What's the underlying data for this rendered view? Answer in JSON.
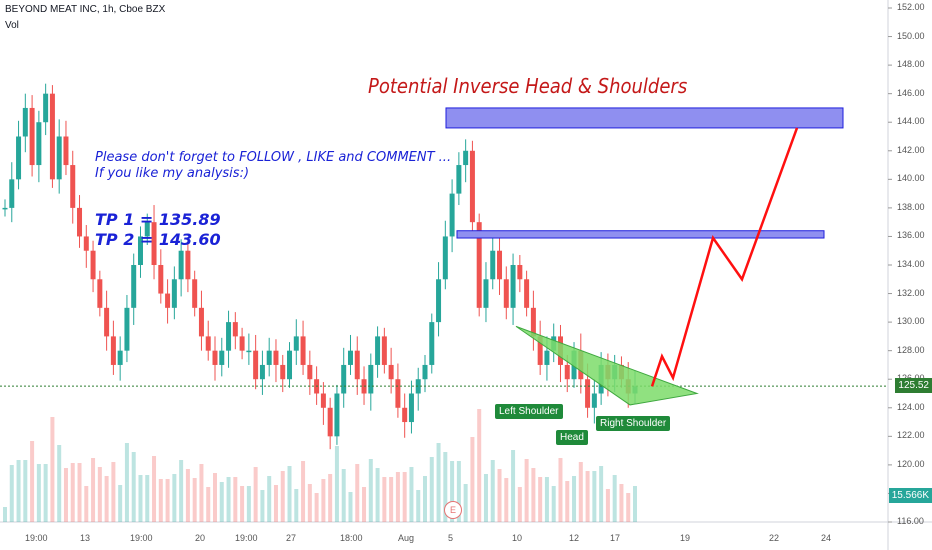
{
  "header": {
    "symbol_line": "BEYOND MEAT INC, 1h, Cboe BZX",
    "volume_label": "Vol"
  },
  "annotations": {
    "title": "Potential Inverse Head & Shoulders",
    "note_line1": "Please don't forget  to FOLLOW , LIKE and COMMENT ...",
    "note_line2": "If you like my analysis:)",
    "tp1": "TP 1 = 135.89",
    "tp2": "TP 2 = 143.60",
    "left_shoulder": "Left Shoulder",
    "head": "Head",
    "right_shoulder": "Right Shoulder",
    "earnings_marker": "E"
  },
  "price_axis": {
    "last_price": "125.52",
    "volume_value": "15.566K",
    "ticks": [
      "152.00",
      "150.00",
      "148.00",
      "146.00",
      "144.00",
      "142.00",
      "140.00",
      "138.00",
      "136.00",
      "134.00",
      "132.00",
      "130.00",
      "128.00",
      "126.00",
      "124.00",
      "122.00",
      "120.00",
      "118.00",
      "116.00"
    ]
  },
  "time_axis": {
    "ticks": [
      "19:00",
      "13",
      "19:00",
      "20",
      "19:00",
      "27",
      "18:00",
      "Aug",
      "5",
      "10",
      "12",
      "17",
      "19",
      "22",
      "24"
    ]
  },
  "colors": {
    "up": "#26a69a",
    "down": "#ef5350",
    "zone_fill": "#8f8ff0",
    "zone_border": "#1e1edc",
    "triangle": "#7ddc6a",
    "projection": "#ff1010",
    "last_price_line": "#2e7d32",
    "label_bg": "#1f8a3a"
  },
  "chart_data": {
    "type": "candlestick",
    "symbol": "BEYOND MEAT INC",
    "interval": "1h",
    "exchange": "Cboe BZX",
    "ylim": [
      116,
      152
    ],
    "last_price": 125.52,
    "zones": [
      {
        "name": "TP 2",
        "low": 143.6,
        "high": 145.0
      },
      {
        "name": "TP 1",
        "low": 135.89,
        "high": 136.4
      }
    ],
    "pattern": "Inverse Head & Shoulders",
    "projection_path": [
      125.5,
      127.6,
      126.1,
      135.9,
      133.0,
      143.6
    ],
    "price_path": [
      138,
      140,
      143,
      145,
      141,
      144,
      146,
      140,
      143,
      141,
      138,
      136,
      135,
      133,
      131,
      129,
      127,
      128,
      131,
      134,
      136,
      137,
      134,
      132,
      131,
      133,
      135,
      133,
      131,
      129,
      128,
      127,
      128,
      130,
      129,
      128,
      128,
      126,
      127,
      128,
      127,
      126,
      128,
      129,
      127,
      126,
      125,
      124,
      122,
      125,
      127,
      128,
      126,
      125,
      127,
      129,
      127,
      126,
      124,
      123,
      125,
      126,
      127,
      130,
      133,
      136,
      139,
      141,
      142,
      137,
      131,
      133,
      135,
      133,
      131,
      134,
      133,
      131,
      129,
      127,
      128,
      129,
      127,
      126,
      128,
      126,
      124,
      125,
      127,
      126,
      127,
      126,
      125,
      125.5
    ],
    "volume_note": "15.566K"
  }
}
